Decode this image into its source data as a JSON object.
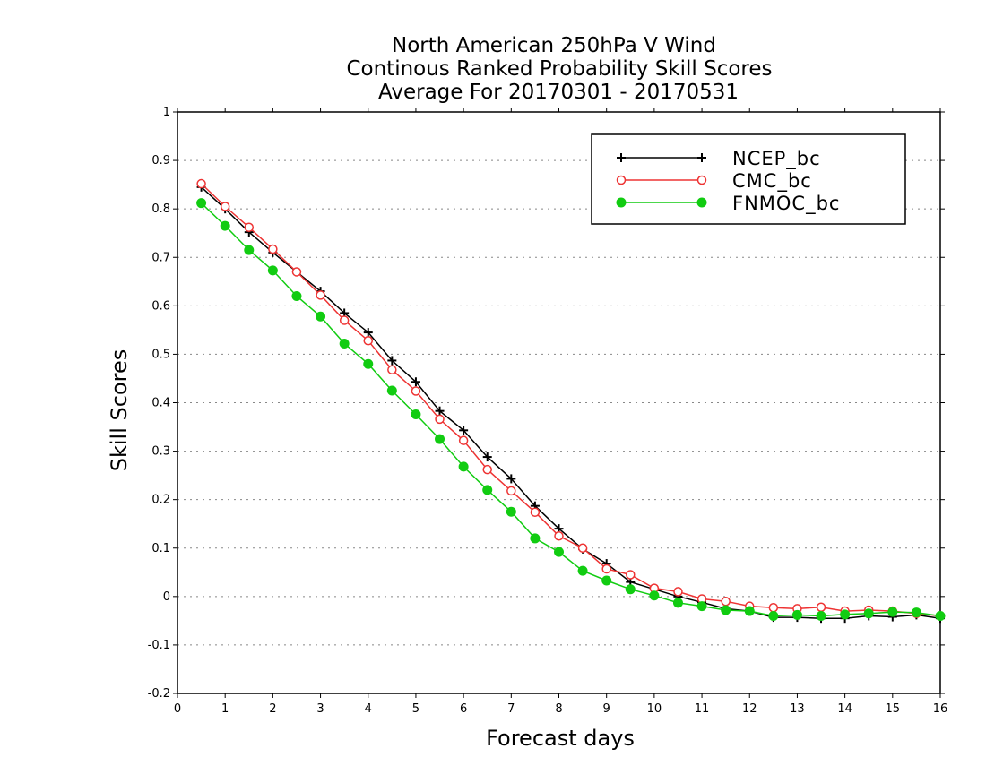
{
  "chart_data": {
    "type": "line",
    "title_lines": [
      "North American 250hPa V Wind",
      "Continous Ranked Probability Skill Scores",
      "Average For 20170301 - 20170531"
    ],
    "xlabel": "Forecast days",
    "ylabel": "Skill Scores",
    "xlim": [
      0,
      16
    ],
    "ylim": [
      -0.2,
      1
    ],
    "x_ticks": [
      "0",
      "1",
      "2",
      "3",
      "4",
      "5",
      "6",
      "7",
      "8",
      "9",
      "10",
      "11",
      "12",
      "13",
      "14",
      "15",
      "16"
    ],
    "y_ticks": [
      "-0.2",
      "-0.1",
      "0",
      "0.1",
      "0.2",
      "0.3",
      "0.4",
      "0.5",
      "0.6",
      "0.7",
      "0.8",
      "0.9",
      "1"
    ],
    "grid": "horizontal dotted",
    "legend_position": "top-right",
    "x": [
      0.5,
      1,
      1.5,
      2,
      2.5,
      3,
      3.5,
      4,
      4.5,
      5,
      5.5,
      6,
      6.5,
      7,
      7.5,
      8,
      8.5,
      9,
      9.5,
      10,
      10.5,
      11,
      11.5,
      12,
      12.5,
      13,
      13.5,
      14,
      14.5,
      15,
      15.5,
      16
    ],
    "series": [
      {
        "name": "NCEP_bc",
        "color": "#000000",
        "marker": "plus",
        "values": [
          0.845,
          0.8,
          0.752,
          0.71,
          0.67,
          0.63,
          0.585,
          0.545,
          0.487,
          0.443,
          0.383,
          0.343,
          0.288,
          0.243,
          0.187,
          0.14,
          0.098,
          0.068,
          0.03,
          0.015,
          0.0,
          -0.012,
          -0.025,
          -0.03,
          -0.043,
          -0.043,
          -0.045,
          -0.045,
          -0.04,
          -0.042,
          -0.038,
          -0.045
        ]
      },
      {
        "name": "CMC_bc",
        "color": "#ee3333",
        "marker": "open-circle",
        "values": [
          0.852,
          0.805,
          0.762,
          0.717,
          0.67,
          0.622,
          0.57,
          0.528,
          0.468,
          0.424,
          0.366,
          0.322,
          0.262,
          0.218,
          0.174,
          0.125,
          0.1,
          0.057,
          0.045,
          0.017,
          0.01,
          -0.005,
          -0.01,
          -0.02,
          -0.023,
          -0.025,
          -0.022,
          -0.03,
          -0.028,
          -0.03,
          -0.035,
          -0.04
        ]
      },
      {
        "name": "FNMOC_bc",
        "color": "#11cc11",
        "marker": "filled-circle",
        "values": [
          0.812,
          0.765,
          0.715,
          0.673,
          0.62,
          0.578,
          0.522,
          0.48,
          0.425,
          0.376,
          0.325,
          0.268,
          0.22,
          0.175,
          0.12,
          0.092,
          0.053,
          0.033,
          0.015,
          0.002,
          -0.013,
          -0.02,
          -0.028,
          -0.03,
          -0.04,
          -0.038,
          -0.04,
          -0.037,
          -0.035,
          -0.032,
          -0.033,
          -0.04
        ]
      }
    ]
  }
}
